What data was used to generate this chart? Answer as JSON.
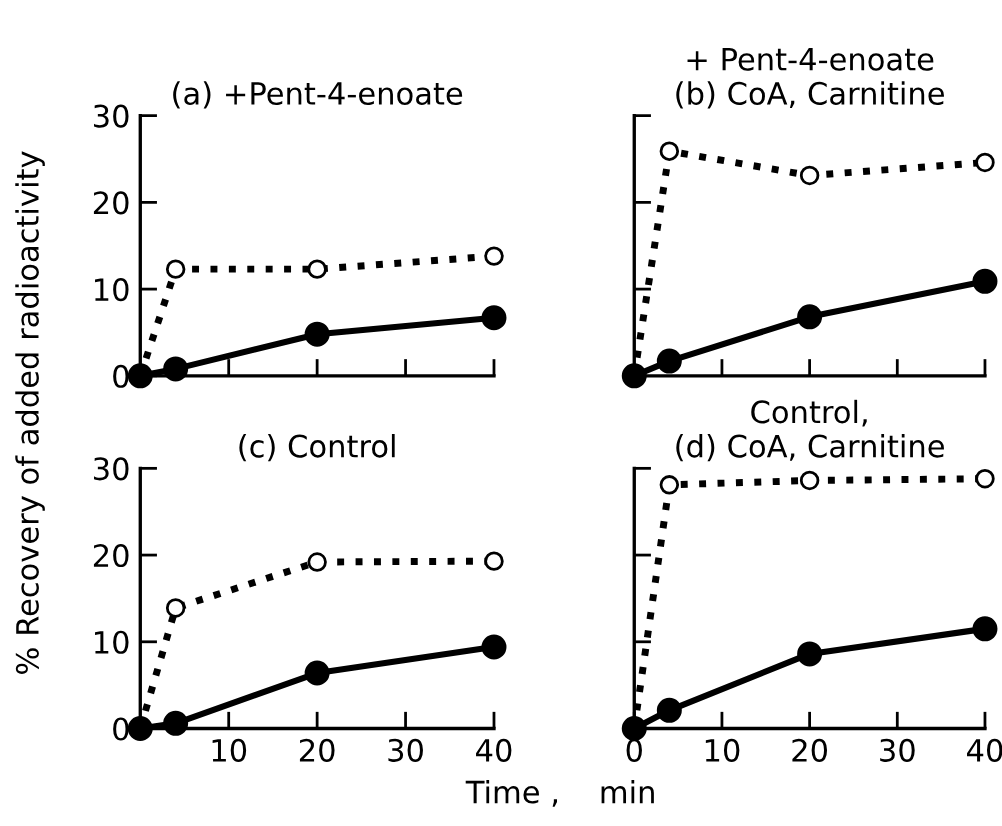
{
  "chart_data": [
    {
      "type": "line",
      "title": "(a) +Pent-4-enoate",
      "ylabel": "% Recovery of added radioactivity",
      "xlim": [
        0,
        40
      ],
      "ylim": [
        0,
        30
      ],
      "xticks": [
        {
          "value": 10,
          "label": null
        },
        {
          "value": 20,
          "label": null
        },
        {
          "value": 30,
          "label": null
        },
        {
          "value": 40,
          "label": null
        }
      ],
      "yticks": [
        0,
        10,
        20,
        30
      ],
      "tick_labels": "y",
      "marker": "circle",
      "grid": false,
      "series": [
        {
          "color": "#000000",
          "line_style": "dotted",
          "x": [
            0,
            4,
            20,
            40
          ],
          "values": [
            0,
            12.3,
            12.3,
            13.8
          ]
        },
        {
          "color": "#000000",
          "line_style": "solid",
          "x": [
            0,
            4,
            20,
            40
          ],
          "values": [
            0,
            0.8,
            4.8,
            6.7
          ]
        }
      ]
    },
    {
      "type": "line",
      "title": "+ Pent-4-enoate\n(b) CoA, Carnitine",
      "xlim": [
        0,
        40
      ],
      "ylim": [
        0,
        30
      ],
      "xticks": [
        {
          "value": 10,
          "label": null
        },
        {
          "value": 20,
          "label": null
        },
        {
          "value": 30,
          "label": null
        },
        {
          "value": 40,
          "label": null
        }
      ],
      "yticks": [
        {
          "value": 10,
          "label": null
        },
        {
          "value": 20,
          "label": null
        },
        {
          "value": 30,
          "label": null
        }
      ],
      "tick_labels": false,
      "marker": "circle",
      "grid": false,
      "series": [
        {
          "color": "#000000",
          "line_style": "dotted",
          "x": [
            0,
            4,
            20,
            40
          ],
          "values": [
            0,
            25.9,
            23.1,
            24.6
          ]
        },
        {
          "color": "#000000",
          "line_style": "solid",
          "x": [
            0,
            4,
            20,
            40
          ],
          "values": [
            0,
            1.7,
            6.8,
            10.9
          ]
        }
      ]
    },
    {
      "type": "line",
      "title": "(c) Control",
      "xlabel": "Time ,    min",
      "xlim": [
        0,
        40
      ],
      "ylim": [
        0,
        30
      ],
      "xticks": [
        10,
        20,
        30,
        40
      ],
      "yticks": [
        0,
        10,
        20,
        30
      ],
      "marker": "circle",
      "grid": false,
      "series": [
        {
          "color": "#000000",
          "line_style": "dotted",
          "x": [
            0,
            4,
            20,
            40
          ],
          "values": [
            0,
            13.9,
            19.2,
            19.3
          ]
        },
        {
          "color": "#000000",
          "line_style": "solid",
          "x": [
            0,
            4,
            20,
            40
          ],
          "values": [
            0,
            0.6,
            6.4,
            9.4
          ]
        }
      ]
    },
    {
      "type": "line",
      "title": "Control,\n(d) CoA, Carnitine",
      "xlim": [
        0,
        40
      ],
      "ylim": [
        0,
        30
      ],
      "xticks": [
        0,
        10,
        20,
        30,
        40
      ],
      "yticks": [
        {
          "value": 10,
          "label": null
        },
        {
          "value": 20,
          "label": null
        },
        {
          "value": 30,
          "label": null
        }
      ],
      "tick_labels": "x",
      "marker": "circle",
      "grid": false,
      "series": [
        {
          "color": "#000000",
          "line_style": "dotted",
          "x": [
            0,
            4,
            20,
            40
          ],
          "values": [
            0,
            28.1,
            28.6,
            28.8
          ]
        },
        {
          "color": "#000000",
          "line_style": "solid",
          "x": [
            0,
            4,
            20,
            40
          ],
          "values": [
            0,
            2.1,
            8.6,
            11.5
          ]
        }
      ]
    }
  ]
}
